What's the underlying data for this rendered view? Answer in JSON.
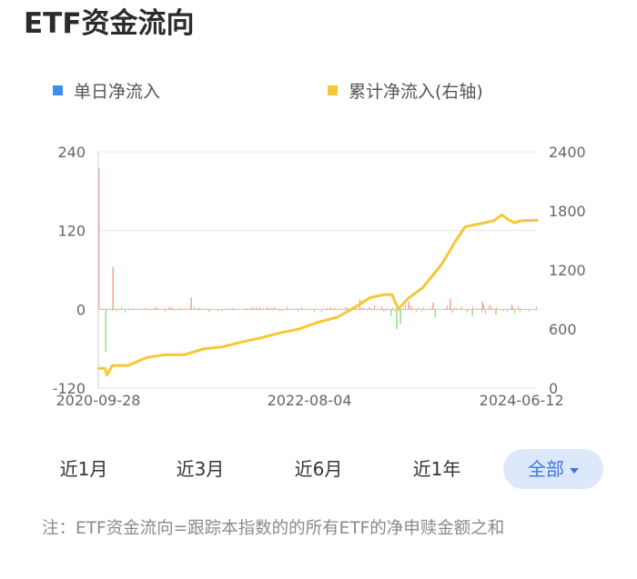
{
  "page_title": "ETF资金流向",
  "legend": [
    {
      "label": "单日净流入",
      "color": "#3d8ef0"
    },
    {
      "label": "累计净流入(右轴)",
      "color": "#f5c835"
    }
  ],
  "range_buttons": [
    {
      "label": "近1月"
    },
    {
      "label": "近3月"
    },
    {
      "label": "近6月"
    },
    {
      "label": "近1年"
    },
    {
      "label": "全部",
      "active": true
    }
  ],
  "note": "注：ETF资金流向=跟踪本指数的的所有ETF的净申赎金额之和",
  "chart_data": {
    "type": "bar+line",
    "x_start": "2020-09-28",
    "x_end": "2024-07-31",
    "x_ticks": [
      "2020-09-28",
      "2022-08-04",
      "2024-06-12"
    ],
    "y_left": {
      "ticks": [
        "240",
        "120",
        "0",
        "-120"
      ],
      "min": -120,
      "max": 240
    },
    "y_right": {
      "ticks": [
        "2400",
        "1800",
        "1200",
        "600",
        "0"
      ],
      "min": 0,
      "max": 2400
    },
    "colors": {
      "positive": "#f4a089",
      "negative": "#8fdc7d",
      "line": "#f5c835",
      "grid": "#e6e6e6",
      "zero": "#cccccc"
    },
    "series": [
      {
        "name": "单日净流入",
        "axis": "left",
        "spikes": [
          {
            "date": "2020-09-28",
            "value": 215
          },
          {
            "date": "2020-10-20",
            "value": -65
          },
          {
            "date": "2020-11-12",
            "value": 65
          },
          {
            "date": "2021-07-20",
            "value": 18
          },
          {
            "date": "2023-01-10",
            "value": 15
          },
          {
            "date": "2023-04-20",
            "value": -10
          },
          {
            "date": "2023-05-08",
            "value": -30
          },
          {
            "date": "2023-05-20",
            "value": -22
          },
          {
            "date": "2023-06-15",
            "value": 12
          },
          {
            "date": "2023-09-01",
            "value": 10
          },
          {
            "date": "2023-09-08",
            "value": -12
          },
          {
            "date": "2023-10-26",
            "value": 16
          },
          {
            "date": "2024-01-05",
            "value": -10
          },
          {
            "date": "2024-02-06",
            "value": 12
          },
          {
            "date": "2024-03-20",
            "value": -8
          },
          {
            "date": "2024-05-10",
            "value": 7
          }
        ]
      },
      {
        "name": "累计净流入(右轴)",
        "axis": "right",
        "points": [
          [
            "2020-09-28",
            200
          ],
          [
            "2020-10-20",
            200
          ],
          [
            "2020-10-25",
            130
          ],
          [
            "2020-11-12",
            230
          ],
          [
            "2021-01-01",
            230
          ],
          [
            "2021-03-01",
            310
          ],
          [
            "2021-05-01",
            340
          ],
          [
            "2021-07-01",
            340
          ],
          [
            "2021-09-01",
            400
          ],
          [
            "2021-11-01",
            420
          ],
          [
            "2022-01-01",
            470
          ],
          [
            "2022-03-01",
            510
          ],
          [
            "2022-05-01",
            560
          ],
          [
            "2022-07-01",
            600
          ],
          [
            "2022-09-01",
            670
          ],
          [
            "2022-11-01",
            720
          ],
          [
            "2023-01-01",
            830
          ],
          [
            "2023-02-15",
            920
          ],
          [
            "2023-04-01",
            950
          ],
          [
            "2023-04-25",
            950
          ],
          [
            "2023-05-15",
            800
          ],
          [
            "2023-06-15",
            910
          ],
          [
            "2023-08-01",
            1020
          ],
          [
            "2023-10-01",
            1260
          ],
          [
            "2023-11-15",
            1500
          ],
          [
            "2023-12-15",
            1640
          ],
          [
            "2024-02-01",
            1670
          ],
          [
            "2024-03-15",
            1700
          ],
          [
            "2024-04-10",
            1760
          ],
          [
            "2024-05-01",
            1710
          ],
          [
            "2024-05-20",
            1680
          ],
          [
            "2024-06-12",
            1700
          ],
          [
            "2024-07-31",
            1705
          ]
        ]
      }
    ]
  }
}
